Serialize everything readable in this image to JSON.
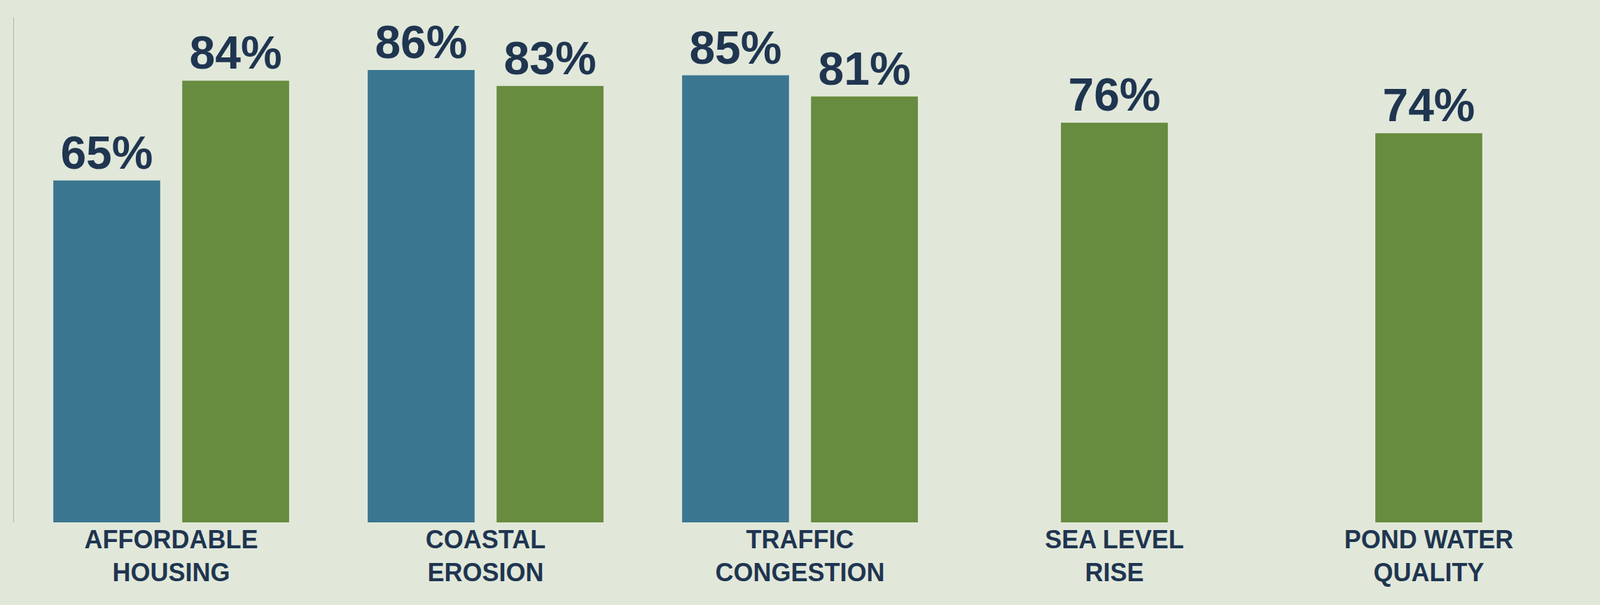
{
  "chart_data": {
    "type": "bar",
    "categories": [
      "AFFORDABLE HOUSING",
      "COASTAL EROSION",
      "TRAFFIC CONGESTION",
      "SEA LEVEL RISE",
      "POND WATER QUALITY"
    ],
    "series": [
      {
        "color": "#3b7690",
        "values": [
          65,
          86,
          85,
          null,
          null
        ],
        "value_labels": [
          "65%",
          "86%",
          "85%",
          null,
          null
        ]
      },
      {
        "color": "#678b3f",
        "values": [
          84,
          83,
          81,
          76,
          74
        ],
        "value_labels": [
          "84%",
          "83%",
          "81%",
          "76%",
          "74%"
        ]
      }
    ],
    "ylim": [
      0,
      96
    ],
    "data_labels": true,
    "tick_labels": "x",
    "grid": false
  }
}
